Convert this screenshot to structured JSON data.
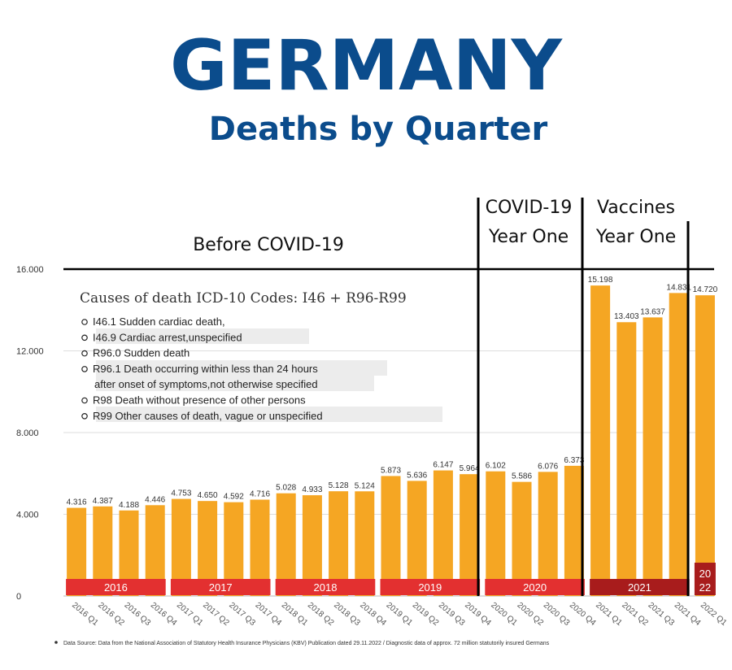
{
  "title": "GERMANY",
  "subtitle": "Deaths by Quarter",
  "periods": {
    "before": "Before COVID-19",
    "covid_line1": "COVID-19",
    "covid_line2": "Year One",
    "vacc_line1": "Vaccines",
    "vacc_line2": "Year One"
  },
  "icd_box": {
    "title": "Causes of death ICD-10 Codes: I46 + R96-R99",
    "items": [
      "I46.1 Sudden cardiac death,",
      "I46.9 Cardiac arrest,unspecified",
      "R96.0 Sudden death",
      "R96.1 Death occurring within less than 24 hours",
      "after onset of symptoms,not otherwise specified",
      "R98 Death without presence of other persons",
      "R99 Other causes of death, vague or unspecified"
    ]
  },
  "source_note": "Data Source: Data from the National Association of Statutory Health Insurance Physicians (KBV) Publication dated 29.11.2022 / Diagnostic data of approx. 72 million statutorily insured Germans",
  "colors": {
    "bar": "#f5a623",
    "title": "#0b4c8c",
    "year_band": "#e33030",
    "year_band_2021": "#a81c1c",
    "year_band_2022": "#a81c1c",
    "gridline": "#dddddd"
  },
  "chart_data": {
    "type": "bar",
    "categories": [
      "2016 Q1",
      "2016 Q2",
      "2016 Q3",
      "2016 Q4",
      "2017 Q1",
      "2017 Q2",
      "2017 Q3",
      "2017 Q4",
      "2018 Q1",
      "2018 Q2",
      "2018 Q3",
      "2018 Q4",
      "2019 Q1",
      "2019 Q2",
      "2019 Q3",
      "2019 Q4",
      "2020 Q1",
      "2020 Q2",
      "2020 Q3",
      "2020 Q4",
      "2021 Q1",
      "2021 Q2",
      "2021 Q3",
      "2021 Q4",
      "2022 Q1"
    ],
    "values": [
      4316,
      4387,
      4188,
      4446,
      4753,
      4650,
      4592,
      4716,
      5028,
      4933,
      5128,
      5124,
      5873,
      5636,
      6147,
      5964,
      6102,
      5586,
      6076,
      6373,
      15198,
      13403,
      13637,
      14831,
      14720
    ],
    "value_labels": [
      "4.316",
      "4.387",
      "4.188",
      "4.446",
      "4.753",
      "4.650",
      "4.592",
      "4.716",
      "5.028",
      "4.933",
      "5.128",
      "5.124",
      "5.873",
      "5.636",
      "6.147",
      "5.964",
      "6.102",
      "5.586",
      "6.076",
      "6.373",
      "15.198",
      "13.403",
      "13.637",
      "14.831",
      "14.720"
    ],
    "ylim": [
      0,
      16000
    ],
    "yticks": [
      0,
      4000,
      8000,
      12000,
      16000
    ],
    "ytick_labels": [
      "0",
      "4.000",
      "8.000",
      "12.000",
      "16.000"
    ],
    "year_bands": [
      {
        "label": "2016",
        "start": 0,
        "end": 3
      },
      {
        "label": "2017",
        "start": 4,
        "end": 7
      },
      {
        "label": "2018",
        "start": 8,
        "end": 11
      },
      {
        "label": "2019",
        "start": 12,
        "end": 15
      },
      {
        "label": "2020",
        "start": 16,
        "end": 19
      },
      {
        "label": "2021",
        "start": 20,
        "end": 23
      },
      {
        "label": "2022",
        "start": 24,
        "end": 24
      }
    ],
    "grid": true
  }
}
